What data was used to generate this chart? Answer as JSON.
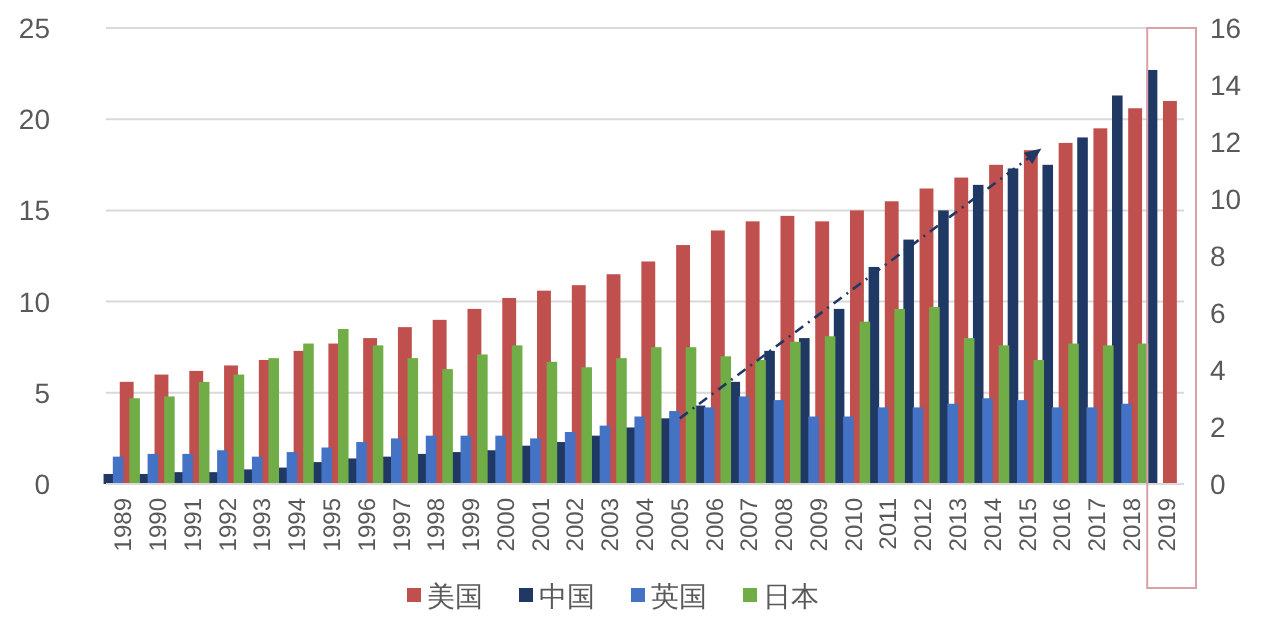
{
  "chart_data": {
    "type": "bar",
    "categories": [
      "1989",
      "1990",
      "1991",
      "1992",
      "1993",
      "1994",
      "1995",
      "1996",
      "1997",
      "1998",
      "1999",
      "2000",
      "2001",
      "2002",
      "2003",
      "2004",
      "2005",
      "2006",
      "2007",
      "2008",
      "2009",
      "2010",
      "2011",
      "2012",
      "2013",
      "2014",
      "2015",
      "2016",
      "2017",
      "2018",
      "2019"
    ],
    "series": [
      {
        "name": "美国",
        "color": "#c0504d",
        "values": [
          5.6,
          6.0,
          6.2,
          6.5,
          6.8,
          7.3,
          7.7,
          8.0,
          8.6,
          9.0,
          9.6,
          10.2,
          10.6,
          10.9,
          11.5,
          12.2,
          13.1,
          13.9,
          14.4,
          14.7,
          14.4,
          15.0,
          15.5,
          16.2,
          16.8,
          17.5,
          18.3,
          18.7,
          19.5,
          20.6,
          21.0
        ]
      },
      {
        "name": "中国",
        "color": "#1f3864",
        "values": [
          0.55,
          0.55,
          0.65,
          0.65,
          0.8,
          0.9,
          1.2,
          1.4,
          1.5,
          1.65,
          1.75,
          1.85,
          2.1,
          2.3,
          2.65,
          3.1,
          3.6,
          4.3,
          5.6,
          7.3,
          8.0,
          9.6,
          11.9,
          13.4,
          15.0,
          16.4,
          17.3,
          17.5,
          19.0,
          21.3,
          22.7
        ]
      },
      {
        "name": "英国",
        "color": "#4472c4",
        "values": [
          1.5,
          1.65,
          1.65,
          1.85,
          1.5,
          1.75,
          2.0,
          2.3,
          2.5,
          2.65,
          2.65,
          2.65,
          2.5,
          2.85,
          3.2,
          3.7,
          4.0,
          4.2,
          4.8,
          4.6,
          3.7,
          3.7,
          4.2,
          4.2,
          4.4,
          4.7,
          4.6,
          4.2,
          4.2,
          4.4,
          null
        ]
      },
      {
        "name": "日本",
        "color": "#70ad47",
        "values": [
          4.7,
          4.8,
          5.6,
          6.0,
          6.9,
          7.7,
          8.5,
          7.6,
          6.9,
          6.3,
          7.1,
          7.6,
          6.7,
          6.4,
          6.9,
          7.5,
          7.5,
          7.0,
          6.8,
          7.8,
          8.1,
          8.9,
          9.6,
          9.7,
          8.0,
          7.6,
          6.8,
          7.7,
          7.6,
          7.7,
          null
        ]
      }
    ],
    "ylim": [
      0,
      25
    ],
    "yticks": [
      0,
      5,
      10,
      15,
      20,
      25
    ],
    "y2lim": [
      0,
      16
    ],
    "y2ticks": [
      0,
      2,
      4,
      6,
      8,
      10,
      12,
      14,
      16
    ],
    "grid": "y",
    "legend": "bottom"
  }
}
